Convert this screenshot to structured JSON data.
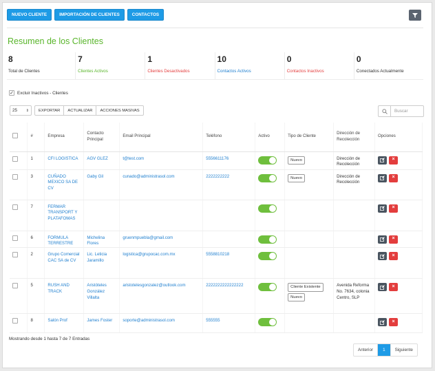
{
  "toolbar": {
    "new_client": "NUEVO CLIENTE",
    "import_clients": "IMPORTACIÓN DE CLIENTES",
    "contacts": "CONTACTOS"
  },
  "page_title": "Resumen de los Clientes",
  "stats": [
    {
      "value": "8",
      "label": "Total de Clientes",
      "color": "#333333"
    },
    {
      "value": "7",
      "label": "Clientes Activos",
      "color": "#59b52b"
    },
    {
      "value": "1",
      "label": "Clientes Desactivados",
      "color": "#e33d3d"
    },
    {
      "value": "10",
      "label": "Contactos Activos",
      "color": "#1f7fcf"
    },
    {
      "value": "0",
      "label": "Contactos Inactivos",
      "color": "#e33d3d"
    },
    {
      "value": "0",
      "label": "Conectados Actualmente",
      "color": "#333333"
    }
  ],
  "exclude_inactive": {
    "label": "Excluir Inactivos - Clientes",
    "checked": true
  },
  "page_size": "25",
  "actions": {
    "export": "EXPORTAR",
    "refresh": "ACTUALIZAR",
    "bulk": "ACCIONES MASIVAS"
  },
  "search": {
    "placeholder": "Buscar"
  },
  "columns": [
    "",
    "#",
    "Empresa",
    "Contacto Principal",
    "Email Principal",
    "Teléfono",
    "Activo",
    "Tipo de Cliente",
    "Dirección de Recolección",
    "Opciones"
  ],
  "rows": [
    {
      "id": "1",
      "empresa": "CFI LOGISTICA",
      "contacto": "AGV GLEZ",
      "email": "t@test.com",
      "telefono": "5556611176",
      "activo": true,
      "tipos": [
        "Nuevo"
      ],
      "direccion": "Dirección de Recolección"
    },
    {
      "id": "3",
      "empresa": "CUÑADO MEXICO SA DE CV",
      "contacto": "Gaby Gil",
      "email": "cunado@administrasol.com",
      "telefono": "2222222222",
      "activo": true,
      "tipos": [
        "Nuevo"
      ],
      "direccion": "Dirección de Recolección"
    },
    {
      "id": "7",
      "empresa": "FERMAR TRANSPORT Y PLATAFOMAS",
      "contacto": "",
      "email": "",
      "telefono": "",
      "activo": true,
      "tipos": [],
      "direccion": ""
    },
    {
      "id": "6",
      "empresa": "FORMULA TERRESTRE",
      "contacto": "Michelina Flores",
      "email": "gruenmpuebla@gmail.com",
      "telefono": "",
      "activo": true,
      "tipos": [],
      "direccion": ""
    },
    {
      "id": "2",
      "empresa": "Grupo Comercial CAC SA de CV",
      "contacto": "Lic. Leticia Jaramillo",
      "email": "logistica@grupocac.com.mx",
      "telefono": "5558810218",
      "activo": true,
      "tipos": [],
      "direccion": ""
    },
    {
      "id": "5",
      "empresa": "RUSH AND TRACK",
      "contacto": "Aristóteles González Villalta",
      "email": "aristotelesgonzalez@outlook.com",
      "telefono": "2222222222222222",
      "activo": true,
      "tipos": [
        "Cliente Existente",
        "Nuevo"
      ],
      "direccion": "Avenida Reforma No. 7634, colonia Centro, SLP"
    },
    {
      "id": "8",
      "empresa": "Salón Prof",
      "contacto": "James Foster",
      "email": "soporte@administrasol.com",
      "telefono": "555555",
      "activo": true,
      "tipos": [],
      "direccion": ""
    }
  ],
  "footer": {
    "info": "Mostrando desde 1 hasta 7 de 7 Entradas"
  },
  "pagination": {
    "prev": "Anterior",
    "current": "1",
    "next": "Siguiente"
  }
}
